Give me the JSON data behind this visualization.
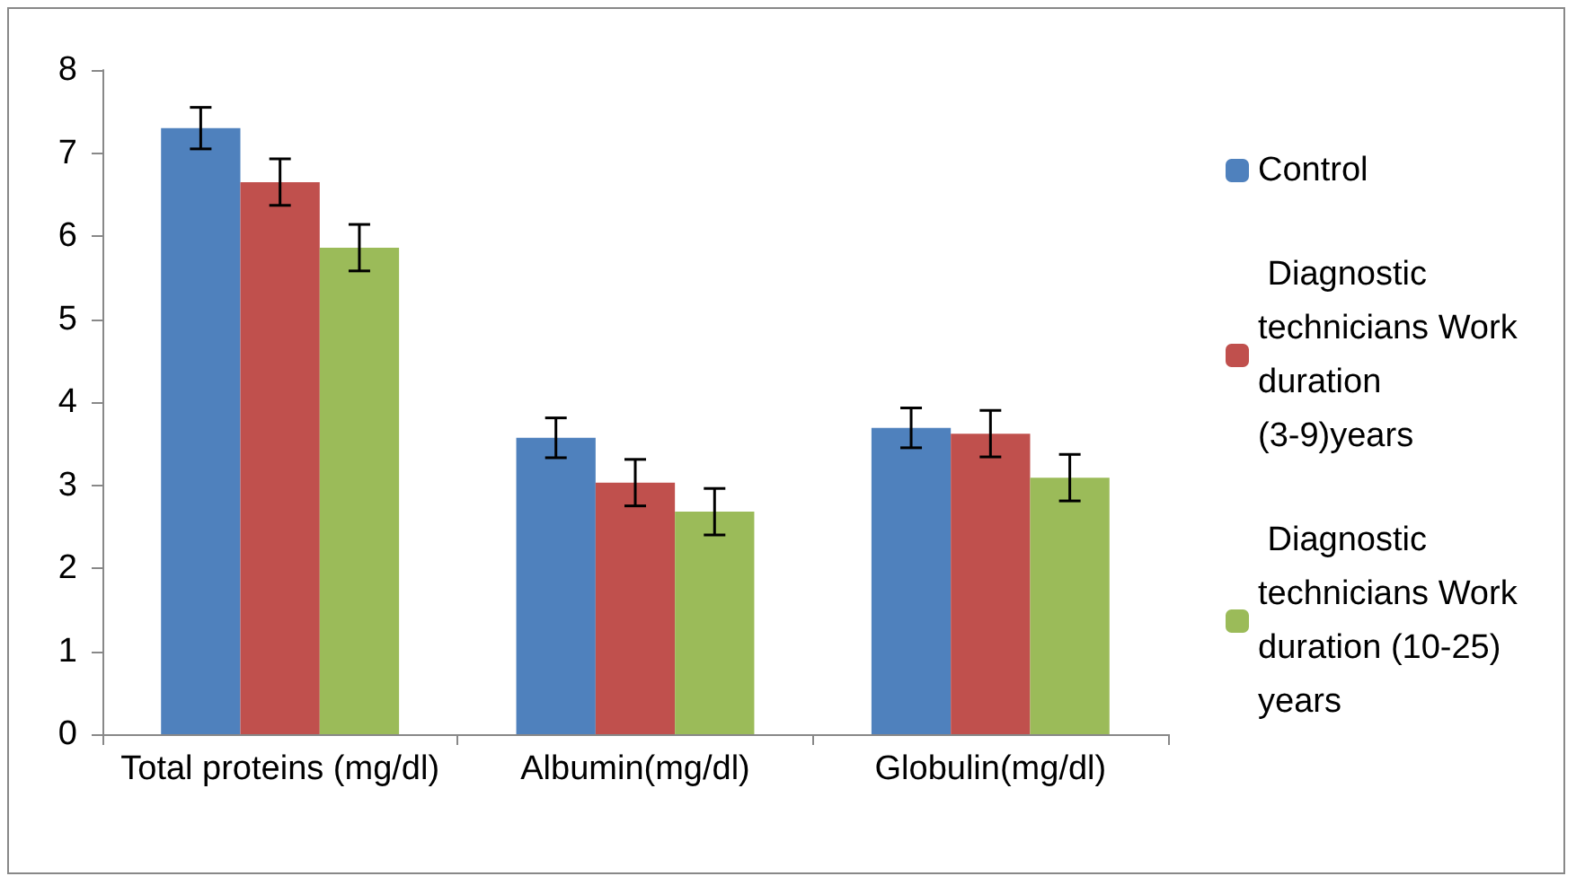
{
  "chart_data": {
    "type": "bar",
    "categories": [
      "Total proteins (mg/dl)",
      "Albumin(mg/dl)",
      "Globulin(mg/dl)"
    ],
    "series": [
      {
        "name": "Control",
        "color": "#4f81bd",
        "values": [
          7.3,
          3.57,
          3.69
        ],
        "errors": [
          0.25,
          0.24,
          0.24
        ]
      },
      {
        "name": " Diagnostic technicians Work duration (3-9)years",
        "color": "#c0504d",
        "values": [
          6.65,
          3.03,
          3.62
        ],
        "errors": [
          0.28,
          0.28,
          0.28
        ]
      },
      {
        "name": " Diagnostic technicians Work duration (10-25) years",
        "color": "#9bbb59",
        "values": [
          5.86,
          2.68,
          3.09
        ],
        "errors": [
          0.28,
          0.28,
          0.28
        ]
      }
    ],
    "ylim": [
      0,
      8
    ],
    "yticks": [
      0,
      1,
      2,
      3,
      4,
      5,
      6,
      7,
      8
    ],
    "grid": false,
    "legend": "right"
  }
}
